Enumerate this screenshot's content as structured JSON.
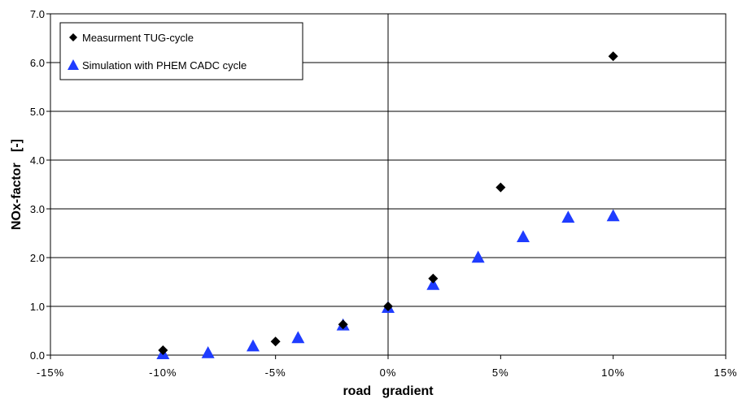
{
  "chart_data": {
    "type": "scatter",
    "xlabel": "road   gradient",
    "ylabel": "NOx-factor   [-]",
    "xlim": [
      -15,
      15
    ],
    "ylim": [
      0,
      7
    ],
    "x_ticks": [
      -15,
      -10,
      -5,
      0,
      5,
      10,
      15
    ],
    "x_tick_labels": [
      "-15%",
      "-10%",
      "-5%",
      "0%",
      "5%",
      "10%",
      "15%"
    ],
    "y_ticks": [
      0,
      1,
      2,
      3,
      4,
      5,
      6,
      7
    ],
    "y_tick_labels": [
      "0.0",
      "1.0",
      "2.0",
      "3.0",
      "4.0",
      "5.0",
      "6.0",
      "7.0"
    ],
    "grid": "horizontal",
    "legend_position": "top-left",
    "series": [
      {
        "name": "Measurment TUG-cycle",
        "marker": "diamond",
        "color": "#000000",
        "x": [
          -10,
          -5,
          -2,
          0,
          2,
          5,
          10
        ],
        "y": [
          0.1,
          0.28,
          0.63,
          1.0,
          1.57,
          3.44,
          6.13
        ]
      },
      {
        "name": "Simulation with PHEM CADC cycle",
        "marker": "triangle",
        "color": "#1f3cff",
        "x": [
          -10,
          -8,
          -6,
          -4,
          -2,
          0,
          2,
          4,
          6,
          8,
          10
        ],
        "y": [
          0.03,
          0.05,
          0.19,
          0.36,
          0.62,
          0.98,
          1.45,
          2.01,
          2.43,
          2.83,
          2.86
        ]
      }
    ]
  }
}
